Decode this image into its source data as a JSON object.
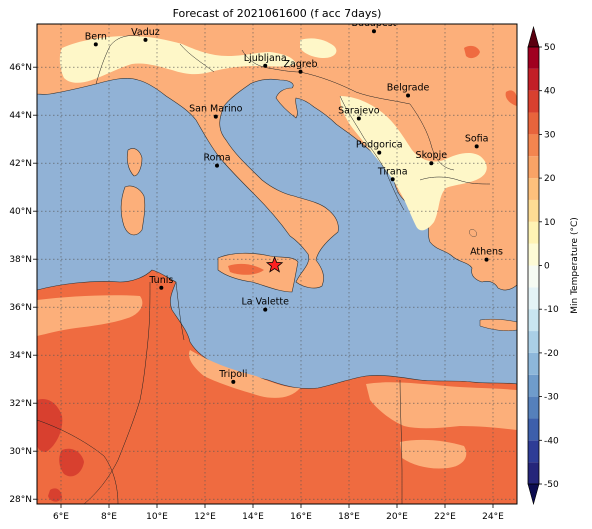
{
  "title": "Forecast of 2021061600 (f acc 7days)",
  "map": {
    "lon_range": [
      5,
      25
    ],
    "lat_range": [
      27.8,
      47.8
    ],
    "lon_ticks": [
      {
        "v": 6,
        "label": "6°E"
      },
      {
        "v": 8,
        "label": "8°E"
      },
      {
        "v": 10,
        "label": "10°E"
      },
      {
        "v": 12,
        "label": "12°E"
      },
      {
        "v": 14,
        "label": "14°E"
      },
      {
        "v": 16,
        "label": "16°E"
      },
      {
        "v": 18,
        "label": "18°E"
      },
      {
        "v": 20,
        "label": "20°E"
      },
      {
        "v": 22,
        "label": "22°E"
      },
      {
        "v": 24,
        "label": "24°E"
      }
    ],
    "lat_ticks": [
      {
        "v": 28,
        "label": "28°N"
      },
      {
        "v": 30,
        "label": "30°N"
      },
      {
        "v": 32,
        "label": "32°N"
      },
      {
        "v": 34,
        "label": "34°N"
      },
      {
        "v": 36,
        "label": "36°N"
      },
      {
        "v": 38,
        "label": "38°N"
      },
      {
        "v": 40,
        "label": "40°N"
      },
      {
        "v": 42,
        "label": "42°N"
      },
      {
        "v": 44,
        "label": "44°N"
      },
      {
        "v": 46,
        "label": "46°N"
      }
    ],
    "grid": "dotted",
    "sea_color": "#91b2d6",
    "cities": [
      {
        "name": "Bern",
        "lon": 7.45,
        "lat": 46.95
      },
      {
        "name": "Vaduz",
        "lon": 9.52,
        "lat": 47.14
      },
      {
        "name": "Budapest",
        "lon": 19.04,
        "lat": 47.5
      },
      {
        "name": "Ljubljana",
        "lon": 14.51,
        "lat": 46.06
      },
      {
        "name": "Zagreb",
        "lon": 15.98,
        "lat": 45.81
      },
      {
        "name": "Belgrade",
        "lon": 20.46,
        "lat": 44.82
      },
      {
        "name": "San Marino",
        "lon": 12.45,
        "lat": 43.94
      },
      {
        "name": "Sarajevo",
        "lon": 18.41,
        "lat": 43.86
      },
      {
        "name": "Sofia",
        "lon": 23.32,
        "lat": 42.7
      },
      {
        "name": "Podgorica",
        "lon": 19.26,
        "lat": 42.44
      },
      {
        "name": "Skopje",
        "lon": 21.43,
        "lat": 42.0
      },
      {
        "name": "Roma",
        "lon": 12.5,
        "lat": 41.9
      },
      {
        "name": "Tirana",
        "lon": 19.82,
        "lat": 41.33
      },
      {
        "name": "Athens",
        "lon": 23.73,
        "lat": 37.98
      },
      {
        "name": "Tunis",
        "lon": 10.18,
        "lat": 36.81
      },
      {
        "name": "La Valette",
        "lon": 14.51,
        "lat": 35.9
      },
      {
        "name": "Tripoli",
        "lon": 13.18,
        "lat": 32.89
      }
    ],
    "marker": {
      "symbol": "star",
      "lon": 14.9,
      "lat": 37.75,
      "color": "#ff2020"
    }
  },
  "colorbar": {
    "label": "Min Temperature (°C)",
    "ticks": [
      "-50",
      "-40",
      "-30",
      "-20",
      "-10",
      "0",
      "10",
      "20",
      "30",
      "40",
      "50"
    ],
    "levels": [
      -50,
      -40,
      -30,
      -20,
      -10,
      0,
      10,
      20,
      30,
      40,
      50
    ],
    "colors": [
      "#2c2c8c",
      "#3b5aa5",
      "#5d8cc0",
      "#8cb6d8",
      "#c2e0ee",
      "#eef8f5",
      "#fef9c8",
      "#fdc082",
      "#f4874f",
      "#d7362a",
      "#a8001e"
    ],
    "under_color": "#0c0c50",
    "over_color": "#5a0010",
    "fill_colors": {
      "t10_20": "#fef7c8",
      "t20_30": "#fcaf7a",
      "t30_40": "#ef6b40",
      "t40_50": "#d8402f"
    }
  }
}
